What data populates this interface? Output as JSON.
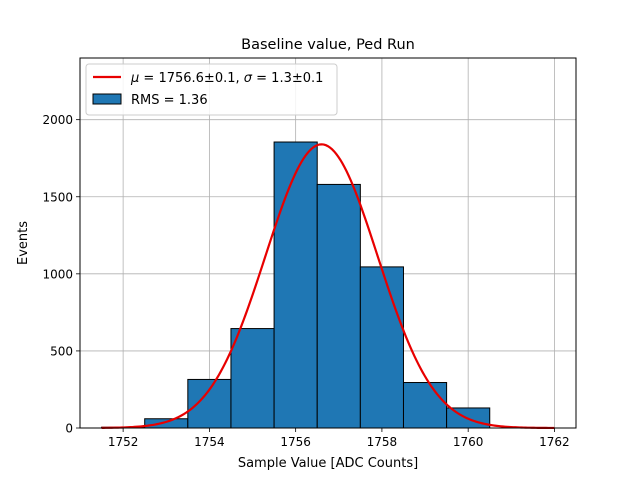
{
  "chart_data": {
    "type": "bar",
    "title": "Baseline value, Ped Run",
    "xlabel": "Sample Value [ADC Counts]",
    "ylabel": "Events",
    "xlim": [
      1751,
      1762.5
    ],
    "ylim": [
      0,
      2400
    ],
    "grid": true,
    "legend_position": "top-left",
    "x_ticks": [
      1752,
      1754,
      1756,
      1758,
      1760,
      1762
    ],
    "y_ticks": [
      0,
      500,
      1000,
      1500,
      2000
    ],
    "histogram": {
      "name": "RMS = 1.36",
      "color": "#1f77b4",
      "edge_color": "#000000",
      "bin_edges": [
        1751.5,
        1752.5,
        1753.5,
        1754.5,
        1755.5,
        1756.5,
        1757.5,
        1758.5,
        1759.5,
        1760.5
      ],
      "counts": [
        5,
        60,
        315,
        645,
        1855,
        1580,
        1045,
        295,
        130
      ]
    },
    "fit": {
      "name_parts": {
        "mu_symbol": "μ",
        "mu_text": " = 1756.6±0.1, ",
        "sigma_symbol": "σ",
        "sigma_text": " = 1.3±0.1"
      },
      "color": "#e80000",
      "mean": 1756.6,
      "sigma": 1.3,
      "amplitude": 1840,
      "x_range": [
        1751.5,
        1762
      ]
    }
  }
}
